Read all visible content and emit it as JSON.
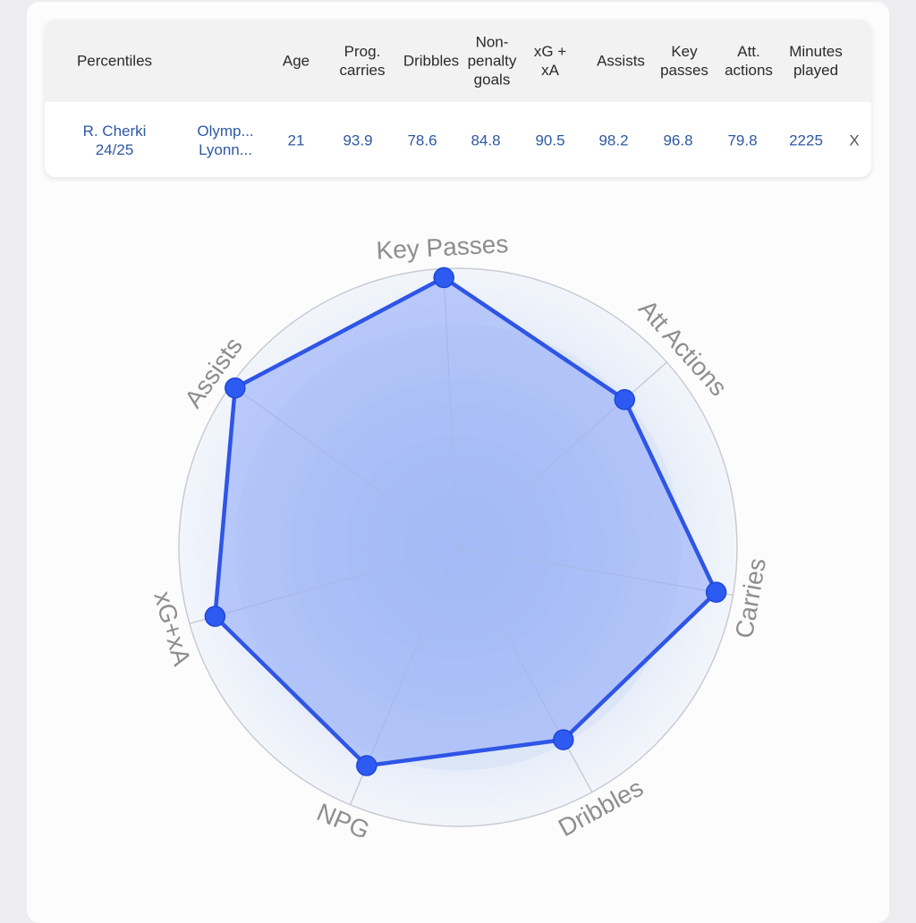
{
  "table": {
    "headers": {
      "percentiles": "Percentiles",
      "age": "Age",
      "prog_carries": [
        "Prog.",
        "carries"
      ],
      "dribbles": "Dribbles",
      "npg": [
        "Non-",
        "penalty",
        "goals"
      ],
      "xgxa": [
        "xG +",
        "xA"
      ],
      "assists": "Assists",
      "key_passes": [
        "Key",
        "passes"
      ],
      "att_actions": [
        "Att.",
        "actions"
      ],
      "minutes": [
        "Minutes",
        "played"
      ]
    },
    "row": {
      "player": [
        "R. Cherki",
        "24/25"
      ],
      "team": [
        "Olymp...",
        "Lyonn..."
      ],
      "age": "21",
      "prog_carries": "93.9",
      "dribbles": "78.6",
      "npg": "84.8",
      "xgxa": "90.5",
      "assists": "98.2",
      "key_passes": "96.8",
      "att_actions": "79.8",
      "minutes": "2225",
      "close": "X"
    }
  },
  "chart_data": {
    "type": "radar",
    "axes": [
      "Key Passes",
      "Att Actions",
      "Carries",
      "Dribbles",
      "NPG",
      "xG+xA",
      "Assists"
    ],
    "values": [
      96.8,
      79.8,
      93.9,
      78.6,
      84.8,
      90.5,
      98.2
    ],
    "range": [
      0,
      100
    ],
    "colors": {
      "line": "#2f55e6",
      "fill": "#97aef8",
      "point": "#2d5bf2",
      "ring": "#c9cbd3",
      "label": "#8e8e8e"
    }
  }
}
